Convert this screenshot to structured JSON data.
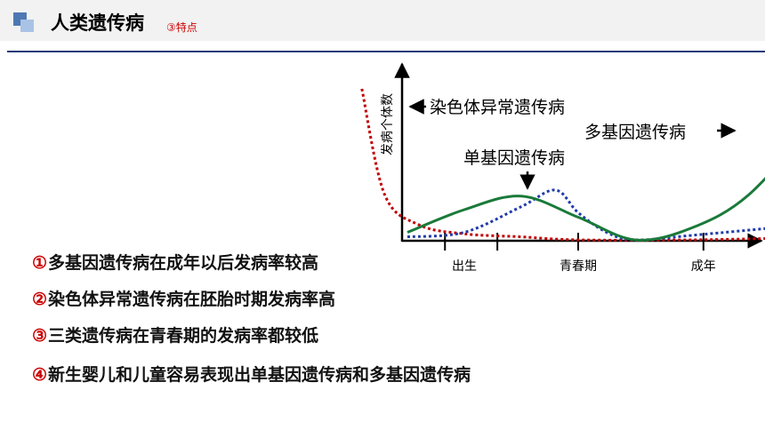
{
  "header": {
    "title": "人类遗传病",
    "subtitle": "③特点"
  },
  "chart_data": {
    "type": "line",
    "ylabel": "发病个体数",
    "xlabel": "",
    "x_ticks": [
      "出生",
      "青春期",
      "成年"
    ],
    "series": [
      {
        "name": "染色体异常遗传病",
        "color": "#c00000",
        "style": "dotted",
        "points": [
          [
            -0.9,
            100
          ],
          [
            -0.7,
            30
          ],
          [
            -0.4,
            10
          ],
          [
            0,
            4
          ],
          [
            0.5,
            2
          ],
          [
            1,
            0
          ],
          [
            2,
            0
          ],
          [
            3,
            1.5
          ]
        ]
      },
      {
        "name": "单基因遗传病",
        "color": "#1f3aa8",
        "style": "dotted",
        "points": [
          [
            -0.5,
            2
          ],
          [
            0,
            5
          ],
          [
            0.5,
            22
          ],
          [
            0.8,
            33
          ],
          [
            1.0,
            18
          ],
          [
            1.25,
            5
          ],
          [
            1.5,
            0
          ],
          [
            2,
            3
          ],
          [
            3,
            10
          ]
        ]
      },
      {
        "name": "多基因遗传病",
        "color": "#1a7a3a",
        "style": "solid",
        "points": [
          [
            -0.5,
            5
          ],
          [
            0,
            20
          ],
          [
            0.5,
            29
          ],
          [
            1.0,
            15
          ],
          [
            1.5,
            0
          ],
          [
            2,
            8
          ],
          [
            2.5,
            30
          ],
          [
            3.1,
            80
          ]
        ]
      }
    ],
    "annotations": [
      "染色体异常遗传病",
      "单基因遗传病",
      "多基因遗传病"
    ],
    "grid": false
  },
  "statements": [
    {
      "num": "①",
      "text": "多基因遗传病在成年以后发病率较高"
    },
    {
      "num": "②",
      "text": "染色体异常遗传病在胚胎时期发病率高"
    },
    {
      "num": "③",
      "text": "三类遗传病在青春期的发病率都较低"
    },
    {
      "num": "④",
      "text": "新生婴儿和儿童容易表现出单基因遗传病和多基因遗传病"
    }
  ]
}
